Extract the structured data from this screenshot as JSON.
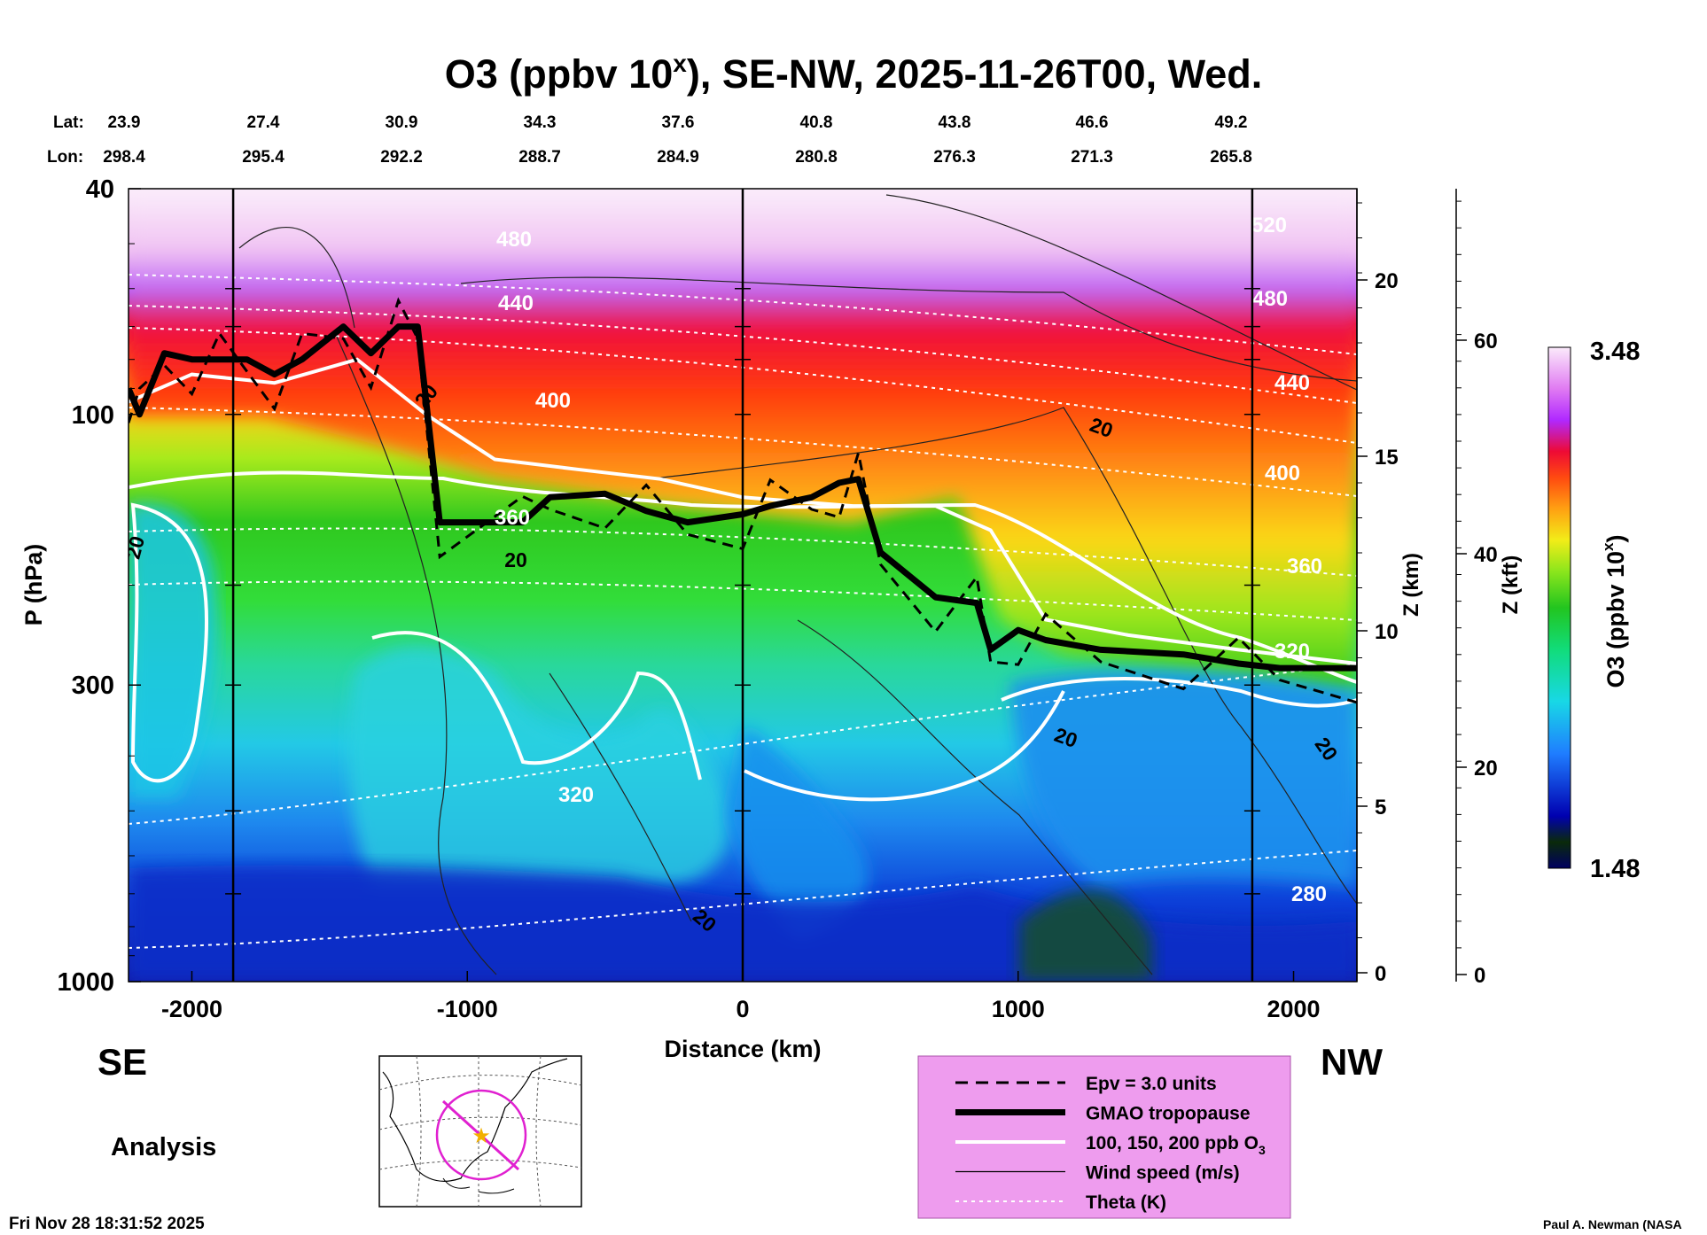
{
  "chart_data": {
    "type": "heatmap",
    "title_main": "O3 (ppbv 10",
    "title_sup": "x",
    "title_rest": "), SE-NW, 2025-11-26T00, Wed.",
    "xlabel": "Distance (km)",
    "ylabel": "P (hPa)",
    "z_km_label": "Z (km)",
    "z_kft_label": "Z (kft)",
    "colorbar_label_main": "O3 (ppbv 10",
    "colorbar_label_sup": "x",
    "colorbar_label_end": ")",
    "colorbar_range": [
      1.48,
      3.48
    ],
    "colorbar_max_label": "3.48",
    "colorbar_min_label": "1.48",
    "xlim": [
      -2230,
      2230
    ],
    "ylim_hpa": [
      1000,
      40
    ],
    "x_ticks": [
      -2000,
      -1000,
      0,
      1000,
      2000
    ],
    "y_ticks_hpa": [
      40,
      100,
      300,
      1000
    ],
    "z_km_ticks": [
      0,
      5,
      10,
      15,
      20
    ],
    "z_kft_ticks": [
      0,
      20,
      40,
      60
    ],
    "lat_label": "Lat:",
    "lon_label": "Lon:",
    "lat_values": [
      "23.9",
      "27.4",
      "30.9",
      "34.3",
      "37.6",
      "40.8",
      "43.8",
      "46.6",
      "49.2"
    ],
    "lon_values": [
      "298.4",
      "295.4",
      "292.2",
      "288.7",
      "284.9",
      "280.8",
      "276.3",
      "271.3",
      "265.8"
    ],
    "vertical_markers_km": [
      -1850,
      0,
      1850
    ],
    "left_dir": "SE",
    "right_dir": "NW",
    "analysis_label": "Analysis",
    "timestamp": "Fri Nov 28 18:31:52 2025",
    "credit": "Paul A. Newman (NASA",
    "legend": [
      {
        "style": "dashed",
        "label": "Epv = 3.0 units"
      },
      {
        "style": "thick",
        "label": "GMAO tropopause"
      },
      {
        "style": "white",
        "label": "100, 150, 200 ppb O",
        "sub": "3"
      },
      {
        "style": "thin",
        "label": "Wind speed (m/s)"
      },
      {
        "style": "dotted",
        "label": "Theta (K)"
      }
    ],
    "theta_labels": [
      "480",
      "440",
      "400",
      "360",
      "320",
      "520",
      "480",
      "440",
      "400",
      "360",
      "320",
      "280"
    ],
    "wind_labels": [
      "20",
      "20",
      "20",
      "20",
      "20",
      "20",
      "20"
    ],
    "tropopause_hpa": [
      [
        -2230,
        90
      ],
      [
        -2190,
        100
      ],
      [
        -2100,
        78
      ],
      [
        -2000,
        80
      ],
      [
        -1900,
        80
      ],
      [
        -1800,
        80
      ],
      [
        -1700,
        85
      ],
      [
        -1600,
        80
      ],
      [
        -1450,
        70
      ],
      [
        -1350,
        78
      ],
      [
        -1250,
        70
      ],
      [
        -1180,
        70
      ],
      [
        -1100,
        155
      ],
      [
        -800,
        155
      ],
      [
        -700,
        140
      ],
      [
        -500,
        138
      ],
      [
        -350,
        148
      ],
      [
        -200,
        155
      ],
      [
        0,
        150
      ],
      [
        100,
        145
      ],
      [
        250,
        140
      ],
      [
        350,
        132
      ],
      [
        420,
        130
      ],
      [
        500,
        175
      ],
      [
        700,
        210
      ],
      [
        850,
        215
      ],
      [
        900,
        260
      ],
      [
        1000,
        240
      ],
      [
        1100,
        250
      ],
      [
        1300,
        260
      ],
      [
        1600,
        265
      ],
      [
        1800,
        275
      ],
      [
        1950,
        280
      ],
      [
        2230,
        280
      ]
    ],
    "ozone_100ppb_contour_hpa": [
      [
        -2230,
        95
      ],
      [
        -2000,
        85
      ],
      [
        -1700,
        88
      ],
      [
        -1400,
        80
      ],
      [
        -1150,
        100
      ],
      [
        -900,
        120
      ],
      [
        -600,
        125
      ],
      [
        -300,
        130
      ],
      [
        0,
        140
      ],
      [
        400,
        145
      ],
      [
        700,
        145
      ],
      [
        900,
        160
      ],
      [
        1100,
        230
      ],
      [
        1400,
        245
      ],
      [
        1800,
        260
      ],
      [
        2230,
        275
      ]
    ]
  }
}
